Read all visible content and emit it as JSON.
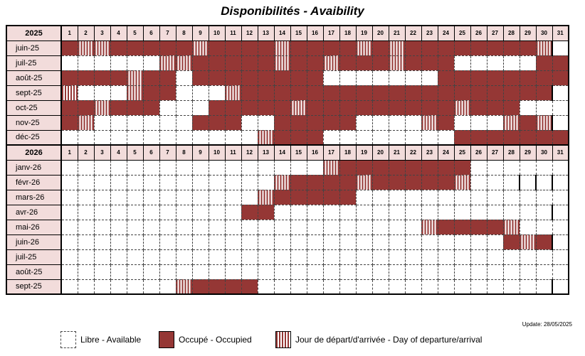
{
  "title": "Disponibilités - Avaibility",
  "days": [
    "1",
    "2",
    "3",
    "4",
    "5",
    "6",
    "7",
    "8",
    "9",
    "10",
    "11",
    "12",
    "13",
    "14",
    "15",
    "16",
    "17",
    "18",
    "19",
    "20",
    "21",
    "22",
    "23",
    "24",
    "25",
    "26",
    "27",
    "28",
    "29",
    "30",
    "31"
  ],
  "status_colors": {
    "occupied": "#953735",
    "header": "#f2dcdb"
  },
  "sections": [
    {
      "year": "2025",
      "months": [
        {
          "label": "juin-25",
          "days": "ottoooootooootoooototoooooooot",
          "length": 30
        },
        {
          "label": "juil-25",
          "days": "ffffffttoooootootoootooofffffoo",
          "length": 31
        },
        {
          "label": "août-25",
          "days": "ooootoofoooooooofffffffooooooooo",
          "length": 31
        },
        {
          "label": "sept-25",
          "days": "tffftooffftooooooooooooooooooo",
          "length": 30
        },
        {
          "label": "oct-25",
          "days": "ootooofffoooootoooooooootooofffft",
          "length": 31
        },
        {
          "label": "nov-25",
          "days": "otffffffoooffooooofffftoffftotoo",
          "length": 30
        },
        {
          "label": "déc-25",
          "days": "fffffffffffftoooffffffffoooooooff",
          "length": 31
        }
      ]
    },
    {
      "year": "2026",
      "months": [
        {
          "label": "janv-26",
          "days": "fffffffffffffffftoooooooofffffffff",
          "length": 31
        },
        {
          "label": "févr-26",
          "days": "ffffffffffffftooootoooootffff",
          "length": 28
        },
        {
          "label": "mars-26",
          "days": "fffffffffffftoooooffffffffffffffff",
          "length": 31
        },
        {
          "label": "avr-26",
          "days": "fffffffffffooffffffffffffffffff",
          "length": 30
        },
        {
          "label": "mai-26",
          "days": "fffffffffffffffffffffftooootffffff",
          "length": 31
        },
        {
          "label": "juin-26",
          "days": "fffffffffffffffffffffffffffotoof",
          "length": 30
        },
        {
          "label": "juil-25",
          "days": "ffffffffffffffffffffffffffffffff",
          "length": 31
        },
        {
          "label": "août-25",
          "days": "ffffffffffffffffffffffffffffffff",
          "length": 31
        },
        {
          "label": "sept-25",
          "days": "ffffffftoooofffffffffffffffffff",
          "length": 30
        }
      ]
    }
  ],
  "update": "Update: 28/05/2025",
  "legend": {
    "free": "Libre - Available",
    "occupied": "Occupé - Occupied",
    "transition": "Jour de départ/d'arrivée - Day of departure/arrival"
  }
}
